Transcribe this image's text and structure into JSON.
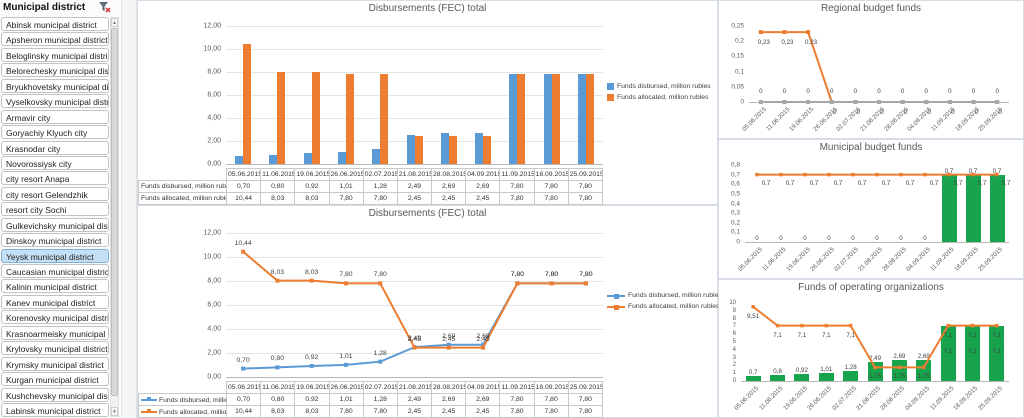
{
  "sidebar": {
    "title": "Municipal district",
    "selected": "Yeysk municipal district",
    "items": [
      "Abinsk municipal district",
      "Apsheron municipal district",
      "Beloglinsky municipal district",
      "Belorechesky municipal dist...",
      "Bryukhovetsky municipal di...",
      "Vyselkovsky municipal distr...",
      "Armavir city",
      "Goryachiy Klyuch city",
      "Krasnodar city",
      "Novorossiysk city",
      "city resort Anapa",
      "city resort Gelendzhik",
      "resort city Sochi",
      "Gulkevichsky municipal dist...",
      "Dinskoy municipal district",
      "Yeysk municipal district",
      "Caucasian municipal district",
      "Kalinin municipal district",
      "Kanev municipal district",
      "Korenovsky municipal district",
      "Krasnoarmeisky municipal ...",
      "Krylovsky municipal district",
      "Krymsky municipal district",
      "Kurgan municipal district",
      "Kushchevsky municipal dis...",
      "Labinsk municipal district"
    ]
  },
  "colors": {
    "blue": "#5B9BD5",
    "orange": "#ED7D31",
    "green": "#17A44D",
    "gray": "#A6A6A6",
    "selection_bg": "#C5E0F5"
  },
  "dates": [
    "05.06.2015",
    "11.06.2015",
    "19.06.2015",
    "26.06.2015",
    "02.07.2015",
    "21.08.2015",
    "28.08.2015",
    "04.09.2015",
    "11.09.2015",
    "18.09.2015",
    "25.09.2015"
  ],
  "chart_data": [
    {
      "id": "t0",
      "type": "bar",
      "title": "Disbursements (FEC) total",
      "categories": [
        "05.06.2015",
        "11.06.2015",
        "19.06.2015",
        "26.06.2015",
        "02.07.2015",
        "21.08.2015",
        "28.08.2015",
        "04.09.2015",
        "11.09.2015",
        "18.09.2015",
        "25.09.2015"
      ],
      "ylim": [
        0,
        12
      ],
      "yticks": [
        "12,00",
        "10,00",
        "8,00",
        "6,00",
        "4,00",
        "2,00",
        "0,00"
      ],
      "grid": true,
      "legend_position": "right",
      "series": [
        {
          "kind": "bar",
          "name": "Funds disbursed, million rubles",
          "color": "#5B9BD5",
          "values": [
            0.7,
            0.8,
            0.92,
            1.01,
            1.28,
            2.49,
            2.69,
            2.69,
            7.8,
            7.8,
            7.8
          ]
        },
        {
          "kind": "bar",
          "name": "Funds allocated, million rubles",
          "color": "#ED7D31",
          "values": [
            10.44,
            8.03,
            8.03,
            7.8,
            7.8,
            2.45,
            2.45,
            2.45,
            7.8,
            7.8,
            7.8
          ]
        }
      ]
    },
    {
      "id": "t1",
      "type": "line",
      "title": "Disbursements (FEC) total",
      "categories": [
        "05.06.2015",
        "11.06.2015",
        "19.06.2015",
        "26.06.2015",
        "02.07.2015",
        "21.08.2015",
        "28.08.2015",
        "04.09.2015",
        "11.09.2015",
        "18.09.2015",
        "25.09.2015"
      ],
      "ylim": [
        0,
        12
      ],
      "yticks": [
        "12,00",
        "10,00",
        "8,00",
        "6,00",
        "4,00",
        "2,00",
        "0,00"
      ],
      "grid": true,
      "legend_position": "right",
      "series": [
        {
          "kind": "line",
          "name": "Funds disbursed, million rubles",
          "color": "#5B9BD5",
          "labels": true,
          "values": [
            0.7,
            0.8,
            0.92,
            1.01,
            1.28,
            2.49,
            2.69,
            2.69,
            7.8,
            7.8,
            7.8
          ]
        },
        {
          "kind": "line",
          "name": "Funds allocated, million rubles",
          "color": "#ED7D31",
          "labels": true,
          "values": [
            10.44,
            8.03,
            8.03,
            7.8,
            7.8,
            2.45,
            2.45,
            2.45,
            7.8,
            7.8,
            7.8
          ]
        }
      ]
    },
    {
      "id": "r0",
      "type": "line",
      "title": "Regional budget funds",
      "categories": [
        "05.06.2015",
        "11.06.2015",
        "19.06.2015",
        "26.06.2015",
        "02.07.2015",
        "21.08.2015",
        "28.08.2015",
        "04.09.2015",
        "11.09.2015",
        "18.09.2015",
        "25.09.2015"
      ],
      "ylim": [
        0,
        0.25
      ],
      "yticks": [
        "0,25",
        "0,2",
        "0,15",
        "0,1",
        "0,05",
        "0"
      ],
      "grid": false,
      "legend_position": "none",
      "series": [
        {
          "kind": "line",
          "color": "#ED7D31",
          "labels": true,
          "values": [
            0.23,
            0.23,
            0.23,
            0,
            0,
            0,
            0,
            0,
            0,
            0,
            0
          ]
        },
        {
          "kind": "line",
          "color": "#A6A6A6",
          "labels": true,
          "values": [
            0,
            0,
            0,
            0,
            0,
            0,
            0,
            0,
            0,
            0,
            0
          ]
        }
      ]
    },
    {
      "id": "r1",
      "type": "bar+line",
      "title": "Municipal budget funds",
      "categories": [
        "05.06.2015",
        "11.06.2015",
        "19.06.2015",
        "26.06.2015",
        "02.07.2015",
        "21.08.2015",
        "28.08.2015",
        "04.09.2015",
        "11.09.2015",
        "18.09.2015",
        "25.09.2015"
      ],
      "ylim": [
        0,
        0.8
      ],
      "yticks": [
        "0,8",
        "0,7",
        "0,6",
        "0,5",
        "0,4",
        "0,3",
        "0,2",
        "0,1",
        "0"
      ],
      "grid": false,
      "legend_position": "none",
      "series": [
        {
          "kind": "bar",
          "color": "#17A44D",
          "labels": true,
          "values": [
            0,
            0,
            0,
            0,
            0,
            0,
            0,
            0,
            0.7,
            0.7,
            0.7
          ]
        },
        {
          "kind": "line",
          "color": "#ED7D31",
          "labels": true,
          "values": [
            0.7,
            0.7,
            0.7,
            0.7,
            0.7,
            0.7,
            0.7,
            0.7,
            0.7,
            0.7,
            0.7
          ]
        }
      ]
    },
    {
      "id": "r2",
      "type": "bar+line",
      "title": "Funds of operating organizations",
      "categories": [
        "05.06.2015",
        "11.06.2015",
        "19.06.2015",
        "26.06.2015",
        "02.07.2015",
        "21.08.2015",
        "28.08.2015",
        "04.09.2015",
        "11.09.2015",
        "18.09.2015",
        "25.09.2015"
      ],
      "ylim": [
        0,
        10
      ],
      "yticks": [
        "10",
        "9",
        "8",
        "7",
        "6",
        "5",
        "4",
        "3",
        "2",
        "1",
        "0"
      ],
      "grid": false,
      "legend_position": "none",
      "series": [
        {
          "kind": "bar",
          "color": "#17A44D",
          "labels": true,
          "values": [
            0.7,
            0.8,
            0.92,
            1.01,
            1.28,
            2.49,
            2.69,
            2.69,
            7.1,
            7.1,
            7.1
          ]
        },
        {
          "kind": "line",
          "color": "#ED7D31",
          "labels": true,
          "values": [
            9.51,
            7.1,
            7.1,
            7.1,
            7.1,
            1.75,
            1.75,
            1.75,
            7.1,
            7.1,
            7.1
          ]
        }
      ]
    }
  ]
}
